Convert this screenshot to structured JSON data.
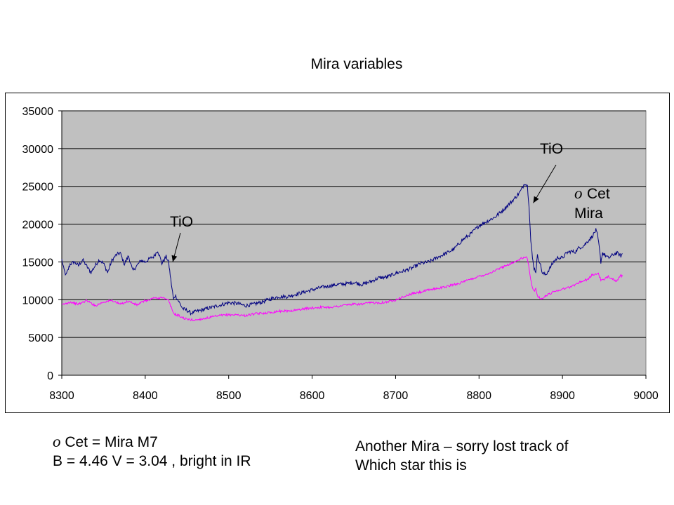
{
  "chart_data": {
    "type": "line",
    "title": "Mira variables",
    "xlabel": "",
    "ylabel": "",
    "xlim": [
      8300,
      9000
    ],
    "ylim": [
      0,
      35000
    ],
    "x_ticks": [
      8300,
      8400,
      8500,
      8600,
      8700,
      8800,
      8900,
      9000
    ],
    "y_ticks": [
      0,
      5000,
      10000,
      15000,
      20000,
      25000,
      30000,
      35000
    ],
    "grid": "horizontal",
    "plot_background": "#c0c0c0",
    "series": [
      {
        "color": "#000080",
        "x": [
          8300,
          8302,
          8305,
          8310,
          8315,
          8320,
          8325,
          8330,
          8335,
          8340,
          8345,
          8350,
          8355,
          8360,
          8365,
          8370,
          8375,
          8380,
          8385,
          8390,
          8395,
          8400,
          8405,
          8410,
          8415,
          8420,
          8425,
          8428,
          8430,
          8432,
          8434,
          8436,
          8438,
          8440,
          8445,
          8450,
          8455,
          8460,
          8470,
          8480,
          8490,
          8500,
          8510,
          8520,
          8530,
          8540,
          8550,
          8560,
          8570,
          8580,
          8590,
          8600,
          8610,
          8620,
          8630,
          8640,
          8650,
          8660,
          8670,
          8680,
          8690,
          8700,
          8710,
          8720,
          8730,
          8740,
          8750,
          8760,
          8770,
          8780,
          8790,
          8800,
          8810,
          8820,
          8830,
          8840,
          8845,
          8850,
          8855,
          8858,
          8860,
          8862,
          8864,
          8866,
          8868,
          8870,
          8873,
          8876,
          8880,
          8885,
          8890,
          8895,
          8900,
          8905,
          8910,
          8915,
          8920,
          8925,
          8930,
          8935,
          8938,
          8940,
          8942,
          8944,
          8946,
          8948,
          8950,
          8955,
          8960,
          8965,
          8970,
          8972
        ],
        "y": [
          15300,
          14200,
          13200,
          14700,
          15000,
          14500,
          15300,
          14400,
          13600,
          14500,
          15300,
          14800,
          13600,
          15200,
          15900,
          16200,
          14700,
          15800,
          13800,
          14500,
          15200,
          15000,
          15400,
          15700,
          16500,
          14800,
          15700,
          15000,
          13200,
          11500,
          10000,
          10600,
          10200,
          9800,
          8800,
          8600,
          8200,
          8400,
          8700,
          9000,
          9300,
          9600,
          9500,
          9200,
          9400,
          9700,
          10100,
          10400,
          10400,
          10700,
          11000,
          11300,
          11600,
          11800,
          12000,
          12100,
          12300,
          12000,
          12400,
          12900,
          13000,
          13500,
          13800,
          14200,
          14800,
          15000,
          15600,
          16100,
          16700,
          17900,
          18700,
          19800,
          20400,
          21000,
          22000,
          23100,
          23700,
          24400,
          25500,
          25000,
          22400,
          17800,
          15500,
          14200,
          13700,
          15800,
          14900,
          13500,
          13300,
          14200,
          15100,
          15600,
          15500,
          16200,
          16400,
          16300,
          16900,
          17100,
          17700,
          18300,
          18800,
          19200,
          18500,
          17000,
          15000,
          16200,
          16000,
          15500,
          15900,
          16200,
          15800,
          16100
        ]
      },
      {
        "color": "#ff00ff",
        "x": [
          8300,
          8310,
          8320,
          8330,
          8340,
          8350,
          8360,
          8370,
          8380,
          8390,
          8400,
          8405,
          8410,
          8415,
          8420,
          8425,
          8428,
          8431,
          8434,
          8437,
          8440,
          8445,
          8450,
          8460,
          8470,
          8480,
          8490,
          8500,
          8510,
          8520,
          8530,
          8540,
          8550,
          8560,
          8570,
          8580,
          8590,
          8600,
          8610,
          8620,
          8630,
          8640,
          8650,
          8660,
          8670,
          8680,
          8690,
          8700,
          8710,
          8720,
          8730,
          8740,
          8750,
          8760,
          8770,
          8780,
          8790,
          8800,
          8810,
          8820,
          8830,
          8840,
          8845,
          8850,
          8855,
          8858,
          8860,
          8862,
          8864,
          8866,
          8868,
          8870,
          8875,
          8880,
          8890,
          8900,
          8910,
          8920,
          8930,
          8935,
          8940,
          8943,
          8946,
          8950,
          8955,
          8960,
          8965,
          8970,
          8972
        ],
        "y": [
          9300,
          9700,
          9400,
          9900,
          9200,
          9700,
          9900,
          9400,
          9800,
          9300,
          9900,
          9900,
          10300,
          10100,
          10400,
          10000,
          9900,
          9000,
          8200,
          8000,
          7900,
          7600,
          7400,
          7300,
          7500,
          7700,
          7900,
          8000,
          8000,
          7900,
          8100,
          8200,
          8300,
          8500,
          8500,
          8600,
          8800,
          8900,
          9000,
          9000,
          9100,
          9300,
          9400,
          9400,
          9600,
          9600,
          9700,
          10000,
          10400,
          10800,
          11000,
          11300,
          11500,
          11700,
          12000,
          12300,
          12700,
          13100,
          13400,
          13900,
          14400,
          14900,
          15100,
          15400,
          15600,
          15500,
          14200,
          12600,
          11500,
          11200,
          11400,
          10500,
          10100,
          10500,
          11100,
          11400,
          11700,
          12300,
          12700,
          13200,
          13400,
          13500,
          12600,
          12600,
          13100,
          12800,
          12400,
          13200,
          13100
        ]
      }
    ],
    "annotations": [
      {
        "text": "TiO",
        "x": 8433,
        "y": 15000
      },
      {
        "text": "TiO",
        "x": 8865,
        "y": 22800
      }
    ],
    "star_label": {
      "symbol": "o",
      "line1": "Cet",
      "line2": "Mira"
    }
  },
  "captions": {
    "left": {
      "symbol": "o",
      "line1_rest": " Cet = Mira M7",
      "line2": "B = 4.46 V = 3.04 , bright in IR"
    },
    "right": {
      "line1": "Another Mira – sorry lost track of",
      "line2": "Which star this is"
    }
  }
}
